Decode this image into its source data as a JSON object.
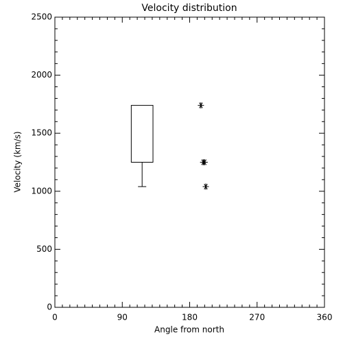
{
  "chart_data": {
    "type": "box_scatter",
    "title": "Velocity distribution",
    "x_label": "Angle from north",
    "y_label": "Velocity (km/s)",
    "xlim": [
      0,
      360
    ],
    "xticks": [
      0,
      90,
      180,
      270,
      360
    ],
    "ylim": [
      0,
      2500
    ],
    "yticks": [
      0,
      500,
      1000,
      1500,
      2000,
      2500
    ],
    "xminorticks": [
      10,
      20,
      30,
      40,
      50,
      60,
      70,
      80,
      100,
      110,
      120,
      130,
      140,
      150,
      160,
      170,
      190,
      200,
      210,
      220,
      230,
      240,
      250,
      260,
      280,
      290,
      300,
      310,
      320,
      330,
      340,
      350
    ],
    "yminorticks": [
      100,
      200,
      300,
      400,
      600,
      700,
      800,
      900,
      1100,
      1200,
      1300,
      1400,
      1600,
      1700,
      1800,
      1900,
      2100,
      2200,
      2300,
      2400
    ],
    "box": {
      "x_left": 102,
      "x_right": 131,
      "q1": 1250,
      "q3": 1740,
      "whisker_low": 1040
    },
    "points": {
      "x": [
        195,
        198,
        200,
        201.5
      ],
      "values": [
        1740,
        1250,
        1250,
        1040
      ]
    },
    "color": "#000000"
  }
}
